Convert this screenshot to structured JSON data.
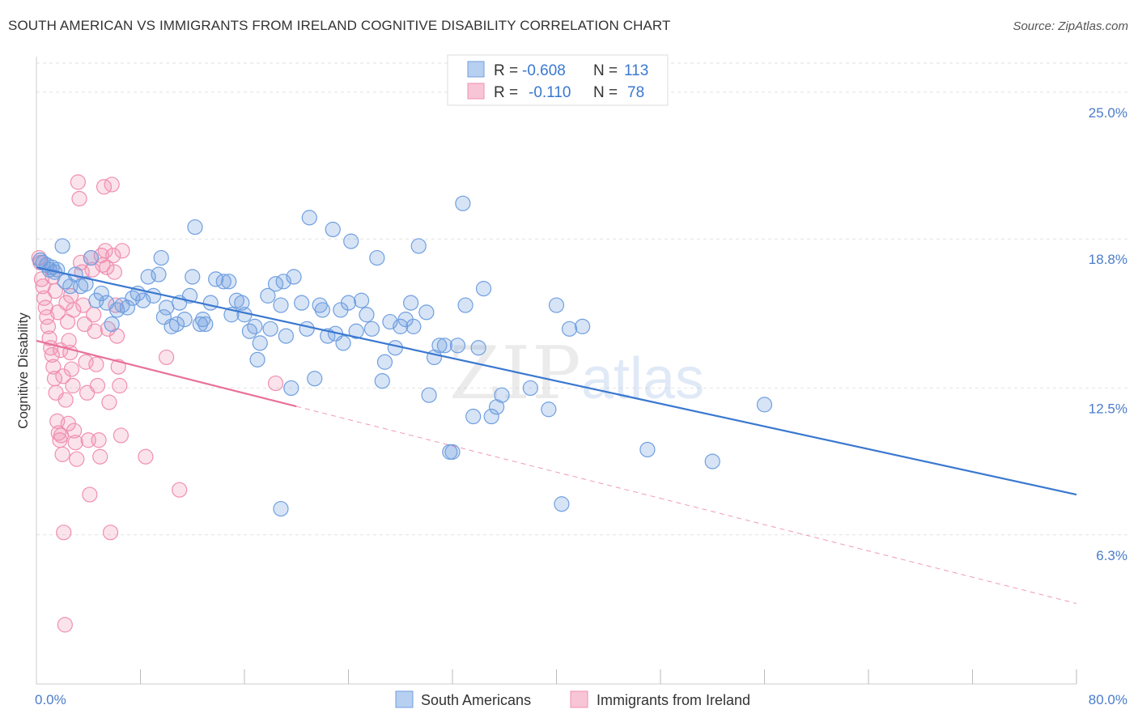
{
  "title": "SOUTH AMERICAN VS IMMIGRANTS FROM IRELAND COGNITIVE DISABILITY CORRELATION CHART",
  "source": "Source: ZipAtlas.com",
  "colors": {
    "blue": "#6f9fe0",
    "blue_line": "#3a78d0",
    "pink": "#f08fb0",
    "pink_line": "#e8709a",
    "tick_text": "#4a7cc9",
    "grid": "#e2e2e2"
  },
  "legend": {
    "r_label": "R =",
    "n_label": "N =",
    "rows": [
      {
        "r": "-0.608",
        "n": "113",
        "color": "blue"
      },
      {
        "r": "-0.110",
        "n": "78",
        "color": "pink"
      }
    ]
  },
  "watermark": {
    "zip": "ZIP",
    "atlas": "atlas"
  },
  "chart_data": {
    "type": "scatter",
    "xlabel": "",
    "ylabel": "Cognitive Disability",
    "xlim": [
      0,
      80
    ],
    "ylim": [
      0,
      26.5
    ],
    "x_tick_labels": [
      {
        "value": 0,
        "label": "0.0%"
      },
      {
        "value": 80,
        "label": "80.0%"
      }
    ],
    "y_tick_labels": [
      {
        "value": 6.3,
        "label": "6.3%"
      },
      {
        "value": 12.5,
        "label": "12.5%"
      },
      {
        "value": 18.8,
        "label": "18.8%"
      },
      {
        "value": 25.0,
        "label": "25.0%"
      }
    ],
    "x_minor_ticks": [
      8,
      16,
      24,
      32,
      40,
      48,
      56,
      64,
      72,
      80
    ],
    "grid": true,
    "legend_position": "top-center",
    "series": [
      {
        "name": "South Americans",
        "color": "#6f9fe0",
        "trend": {
          "x0": 0,
          "y0": 17.6,
          "x1": 80,
          "y1": 8.0,
          "dashed_from": null
        },
        "points": [
          [
            0.3,
            17.9
          ],
          [
            0.5,
            17.8
          ],
          [
            0.8,
            17.7
          ],
          [
            1,
            17.5
          ],
          [
            1.2,
            17.6
          ],
          [
            1.4,
            17.4
          ],
          [
            1.6,
            17.5
          ],
          [
            2,
            18.5
          ],
          [
            2.2,
            17.0
          ],
          [
            2.6,
            16.8
          ],
          [
            3,
            17.3
          ],
          [
            3.4,
            16.8
          ],
          [
            3.8,
            16.9
          ],
          [
            4.2,
            18.0
          ],
          [
            4.6,
            16.2
          ],
          [
            5,
            16.5
          ],
          [
            5.4,
            16.1
          ],
          [
            5.8,
            15.2
          ],
          [
            6.2,
            15.8
          ],
          [
            6.6,
            16.0
          ],
          [
            7,
            15.9
          ],
          [
            7.4,
            16.3
          ],
          [
            7.8,
            16.5
          ],
          [
            8.2,
            16.2
          ],
          [
            8.6,
            17.2
          ],
          [
            9,
            16.4
          ],
          [
            9.4,
            17.3
          ],
          [
            9.6,
            18.0
          ],
          [
            9.8,
            15.5
          ],
          [
            10,
            15.9
          ],
          [
            10.4,
            15.1
          ],
          [
            10.8,
            15.2
          ],
          [
            11,
            16.1
          ],
          [
            11.4,
            15.4
          ],
          [
            11.8,
            16.4
          ],
          [
            12,
            17.2
          ],
          [
            12.2,
            19.3
          ],
          [
            12.6,
            15.2
          ],
          [
            12.8,
            15.4
          ],
          [
            13,
            15.2
          ],
          [
            13.4,
            16.1
          ],
          [
            13.8,
            17.1
          ],
          [
            14.4,
            17.0
          ],
          [
            14.8,
            17.0
          ],
          [
            15,
            15.6
          ],
          [
            15.4,
            16.2
          ],
          [
            15.8,
            16.1
          ],
          [
            16,
            15.6
          ],
          [
            16.4,
            14.9
          ],
          [
            16.8,
            15.1
          ],
          [
            17,
            13.7
          ],
          [
            17.2,
            14.4
          ],
          [
            17.8,
            16.4
          ],
          [
            18,
            15.0
          ],
          [
            18.4,
            16.9
          ],
          [
            18.8,
            16.0
          ],
          [
            19,
            17.0
          ],
          [
            19.2,
            14.7
          ],
          [
            19.6,
            12.5
          ],
          [
            19.8,
            17.2
          ],
          [
            20.4,
            16.1
          ],
          [
            20.8,
            15.0
          ],
          [
            21,
            19.7
          ],
          [
            21.4,
            12.9
          ],
          [
            21.8,
            16.0
          ],
          [
            22,
            15.8
          ],
          [
            22.4,
            14.7
          ],
          [
            22.8,
            19.2
          ],
          [
            23,
            14.8
          ],
          [
            23.4,
            15.8
          ],
          [
            23.6,
            14.4
          ],
          [
            24,
            16.1
          ],
          [
            24.2,
            18.7
          ],
          [
            24.6,
            14.9
          ],
          [
            25,
            16.2
          ],
          [
            25.4,
            15.6
          ],
          [
            25.8,
            15.0
          ],
          [
            26.2,
            18.0
          ],
          [
            26.6,
            12.8
          ],
          [
            26.8,
            13.6
          ],
          [
            27.2,
            15.3
          ],
          [
            27.6,
            14.2
          ],
          [
            28,
            15.1
          ],
          [
            28.4,
            15.4
          ],
          [
            28.8,
            16.1
          ],
          [
            29,
            15.1
          ],
          [
            29.4,
            18.5
          ],
          [
            30,
            15.7
          ],
          [
            30.2,
            12.2
          ],
          [
            30.6,
            13.8
          ],
          [
            31,
            14.3
          ],
          [
            31.4,
            14.3
          ],
          [
            31.8,
            9.8
          ],
          [
            32,
            9.8
          ],
          [
            32.4,
            14.3
          ],
          [
            32.8,
            20.3
          ],
          [
            33,
            16.0
          ],
          [
            33.6,
            11.3
          ],
          [
            34,
            14.2
          ],
          [
            34.4,
            16.7
          ],
          [
            35,
            11.3
          ],
          [
            35.4,
            11.7
          ],
          [
            18.8,
            7.4
          ],
          [
            35.8,
            12.2
          ],
          [
            38,
            12.5
          ],
          [
            39.4,
            11.6
          ],
          [
            40,
            16.0
          ],
          [
            41,
            15.0
          ],
          [
            42,
            15.1
          ],
          [
            47,
            9.9
          ],
          [
            52,
            9.4
          ],
          [
            56,
            11.8
          ],
          [
            40.4,
            7.6
          ]
        ]
      },
      {
        "name": "Immigrants from Ireland",
        "color": "#f08fb0",
        "trend": {
          "x0": 0,
          "y0": 14.5,
          "x1": 80,
          "y1": 3.4,
          "dashed_from": 20
        },
        "points": [
          [
            0.2,
            18.0
          ],
          [
            0.3,
            17.8
          ],
          [
            0.4,
            17.1
          ],
          [
            0.5,
            16.8
          ],
          [
            0.6,
            16.3
          ],
          [
            0.7,
            15.9
          ],
          [
            0.8,
            15.5
          ],
          [
            0.9,
            15.1
          ],
          [
            1,
            14.6
          ],
          [
            1.1,
            14.2
          ],
          [
            1.2,
            13.9
          ],
          [
            1.3,
            13.4
          ],
          [
            1.4,
            12.9
          ],
          [
            1.5,
            12.3
          ],
          [
            1.6,
            11.1
          ],
          [
            1.7,
            10.6
          ],
          [
            1.8,
            10.3
          ],
          [
            1.9,
            10.5
          ],
          [
            2,
            9.7
          ],
          [
            2.1,
            6.4
          ],
          [
            2.2,
            2.5
          ],
          [
            2.3,
            16.1
          ],
          [
            2.4,
            15.3
          ],
          [
            2.5,
            14.5
          ],
          [
            2.6,
            14.0
          ],
          [
            2.7,
            13.3
          ],
          [
            2.8,
            12.6
          ],
          [
            2.9,
            10.7
          ],
          [
            3,
            10.2
          ],
          [
            3.1,
            9.5
          ],
          [
            3.2,
            21.2
          ],
          [
            3.3,
            20.5
          ],
          [
            3.4,
            17.8
          ],
          [
            3.5,
            17.4
          ],
          [
            3.6,
            16.0
          ],
          [
            3.7,
            15.2
          ],
          [
            3.8,
            13.6
          ],
          [
            3.9,
            12.3
          ],
          [
            4,
            10.3
          ],
          [
            4.1,
            8.0
          ],
          [
            4.2,
            18.0
          ],
          [
            4.3,
            17.5
          ],
          [
            4.4,
            15.6
          ],
          [
            4.5,
            14.9
          ],
          [
            4.6,
            13.5
          ],
          [
            4.7,
            12.6
          ],
          [
            4.8,
            10.3
          ],
          [
            4.9,
            9.6
          ],
          [
            5,
            18.1
          ],
          [
            5.1,
            17.7
          ],
          [
            5.2,
            21.0
          ],
          [
            5.3,
            18.3
          ],
          [
            5.4,
            17.6
          ],
          [
            5.5,
            15.0
          ],
          [
            5.6,
            11.9
          ],
          [
            5.7,
            6.4
          ],
          [
            5.8,
            21.1
          ],
          [
            5.9,
            18.1
          ],
          [
            6,
            17.4
          ],
          [
            6.1,
            16.0
          ],
          [
            6.2,
            14.7
          ],
          [
            6.3,
            13.4
          ],
          [
            6.4,
            12.6
          ],
          [
            6.5,
            10.5
          ],
          [
            6.6,
            18.3
          ],
          [
            8.4,
            9.6
          ],
          [
            10,
            13.8
          ],
          [
            11,
            8.2
          ],
          [
            18.4,
            12.7
          ],
          [
            1.25,
            17.2
          ],
          [
            1.45,
            16.6
          ],
          [
            1.65,
            15.7
          ],
          [
            1.85,
            14.1
          ],
          [
            2.05,
            13.0
          ],
          [
            2.25,
            12.0
          ],
          [
            2.45,
            11.0
          ],
          [
            2.65,
            16.4
          ],
          [
            2.85,
            15.8
          ]
        ]
      }
    ]
  },
  "bottom_legend": [
    {
      "label": "South Americans",
      "color": "blue"
    },
    {
      "label": "Immigrants from Ireland",
      "color": "pink"
    }
  ]
}
